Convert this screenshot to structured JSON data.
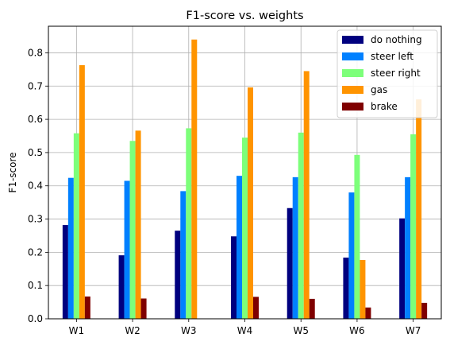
{
  "chart_data": {
    "type": "bar",
    "title": "F1-score vs. weights",
    "xlabel": "",
    "ylabel": "F1-score",
    "categories": [
      "W1",
      "W2",
      "W3",
      "W4",
      "W5",
      "W6",
      "W7"
    ],
    "ylim": [
      0,
      0.88
    ],
    "yticks": [
      "0.0",
      "0.1",
      "0.2",
      "0.3",
      "0.4",
      "0.5",
      "0.6",
      "0.7",
      "0.8"
    ],
    "grid": true,
    "legend_position": "top-right",
    "series": [
      {
        "name": "do nothing",
        "color": "#00007f",
        "values": [
          0.282,
          0.191,
          0.265,
          0.248,
          0.333,
          0.184,
          0.302
        ]
      },
      {
        "name": "steer left",
        "color": "#0080ff",
        "values": [
          0.424,
          0.415,
          0.384,
          0.43,
          0.426,
          0.38,
          0.426
        ]
      },
      {
        "name": "steer right",
        "color": "#7dff7a",
        "values": [
          0.558,
          0.535,
          0.573,
          0.545,
          0.56,
          0.493,
          0.555
        ]
      },
      {
        "name": "gas",
        "color": "#ff9400",
        "values": [
          0.763,
          0.566,
          0.84,
          0.696,
          0.745,
          0.177,
          0.66
        ]
      },
      {
        "name": "brake",
        "color": "#7f0000",
        "values": [
          0.067,
          0.061,
          0.0,
          0.066,
          0.06,
          0.034,
          0.048
        ]
      }
    ]
  }
}
